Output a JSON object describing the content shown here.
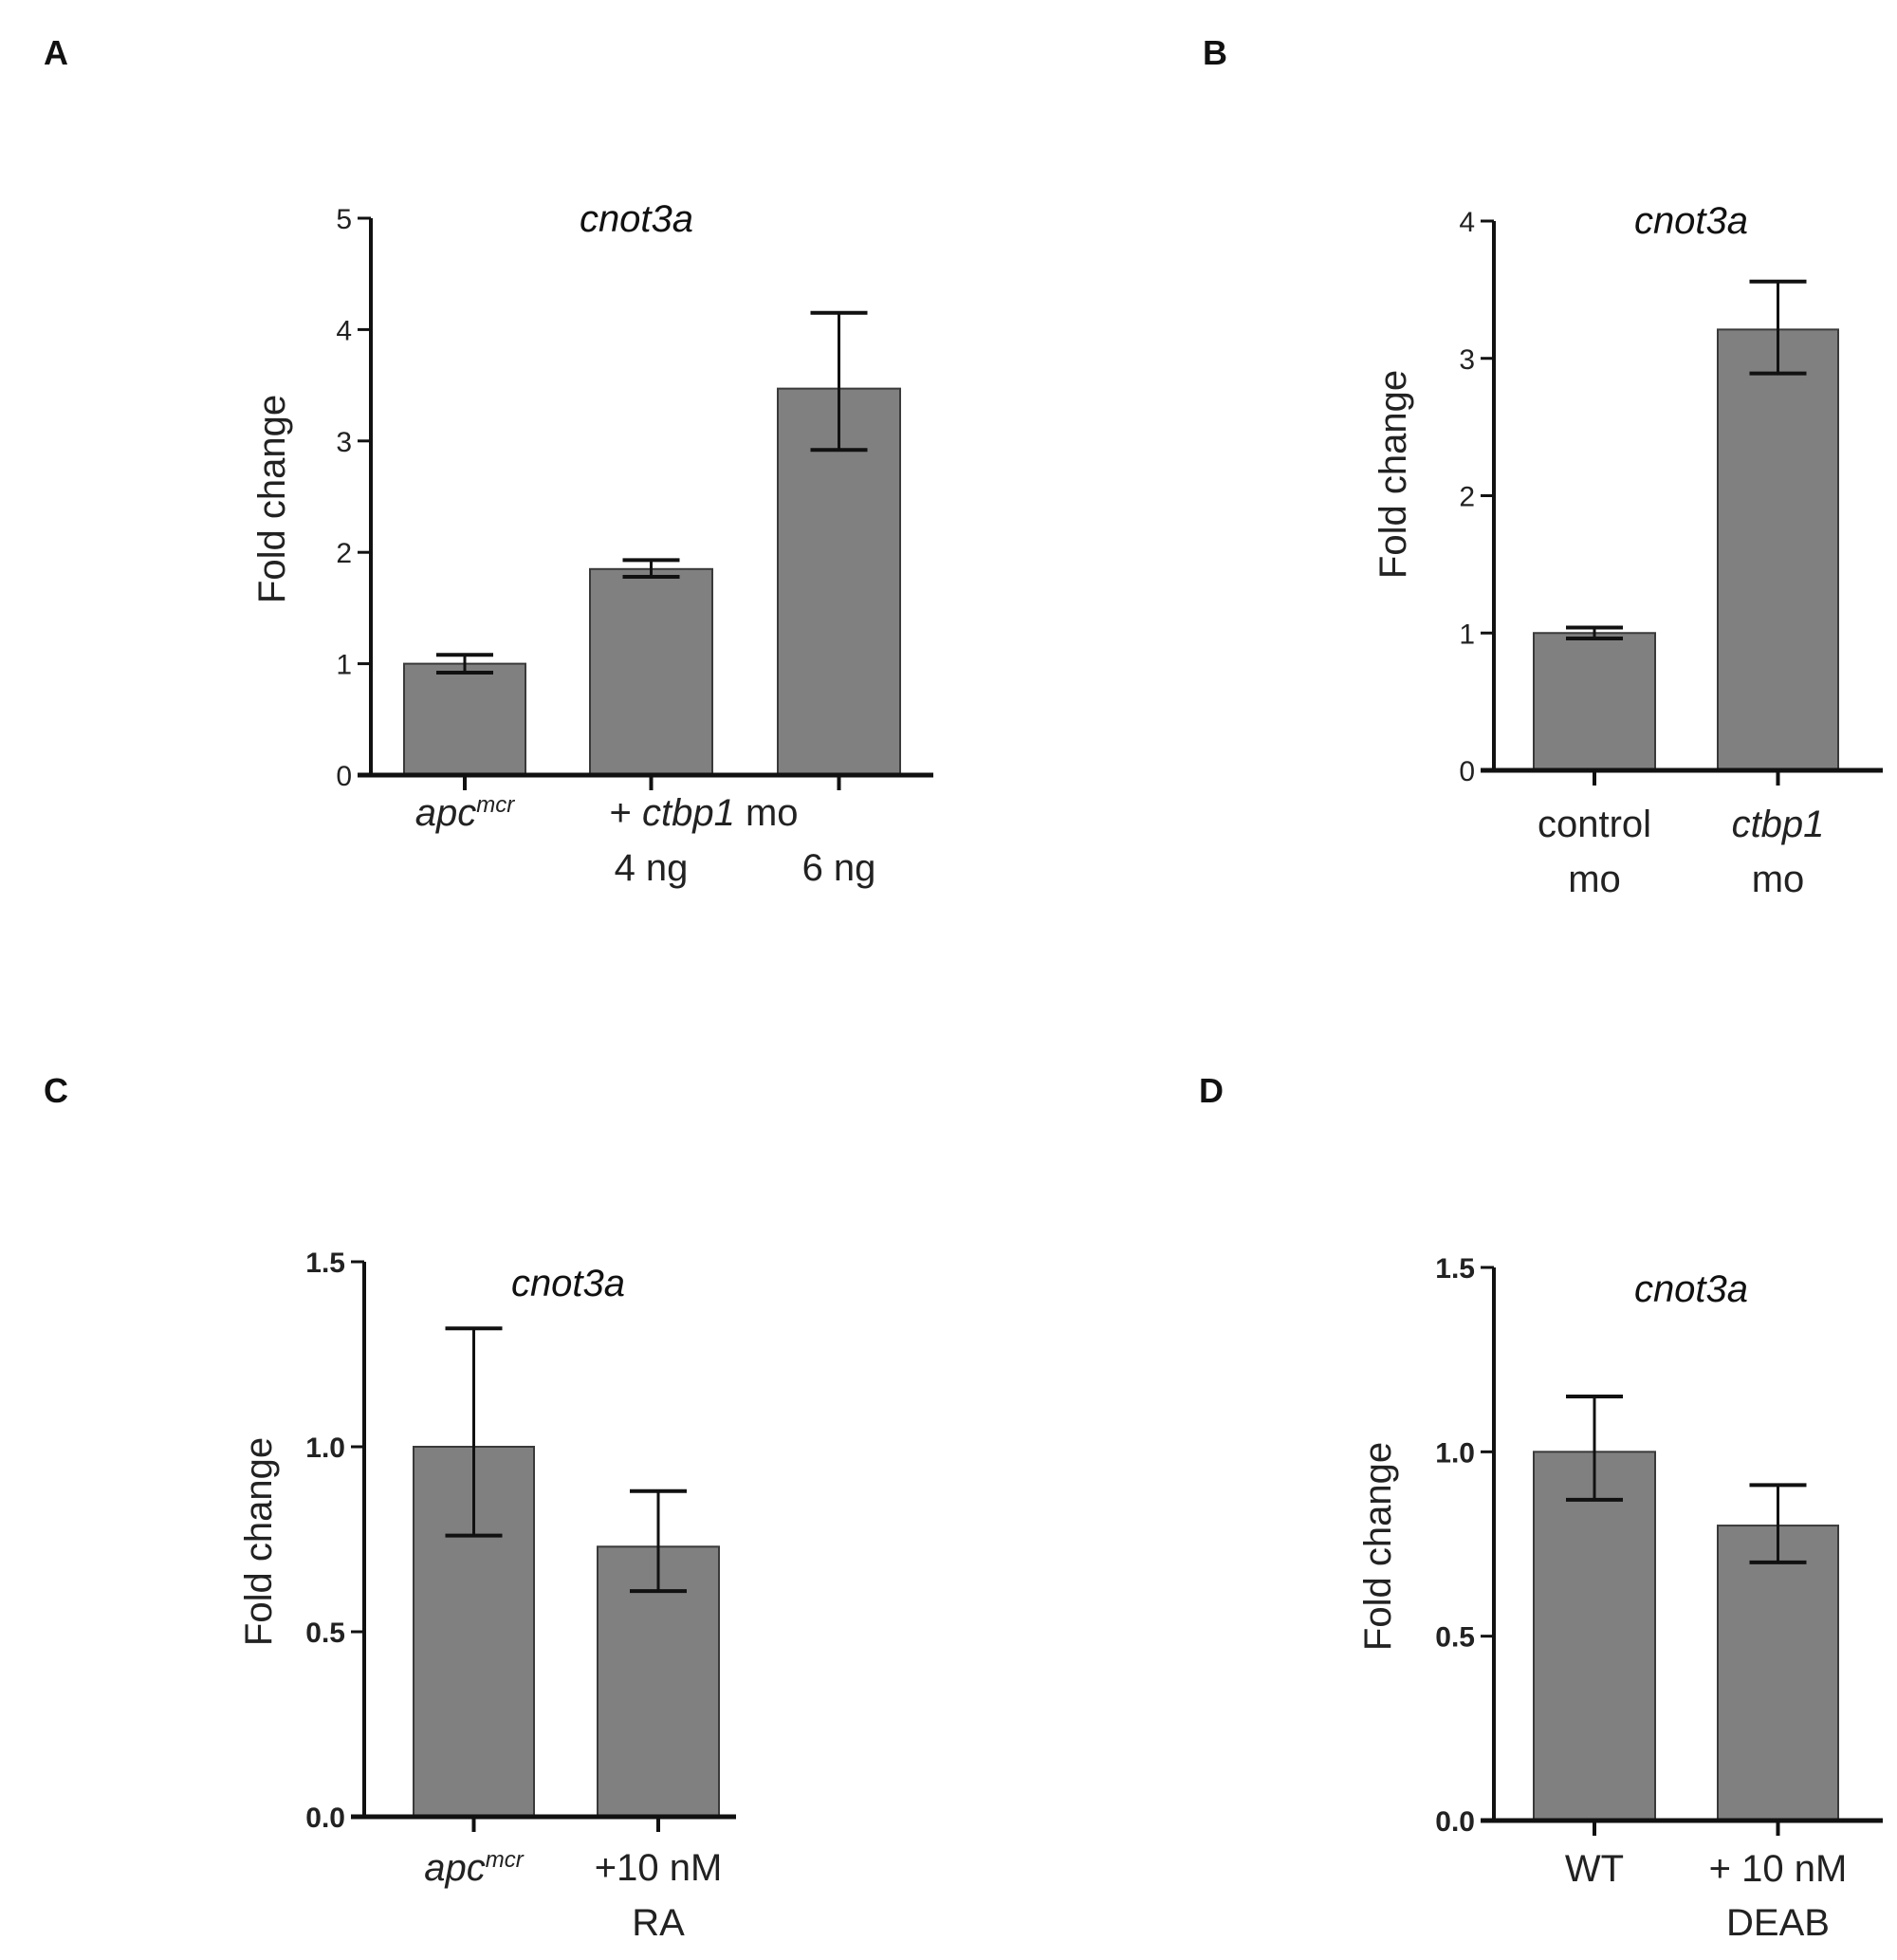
{
  "colors": {
    "bar": "#808080",
    "bar_edge": "#3a3a3a",
    "axis": "#111111",
    "error_bar": "#111111"
  },
  "chart_data": [
    {
      "panel": "A",
      "type": "bar",
      "title": "cnot3a",
      "ylabel": "Fold change",
      "xlabel": "",
      "ylim": [
        0,
        5
      ],
      "yticks": [
        "0",
        "1",
        "2",
        "3",
        "4",
        "5"
      ],
      "tick_step": 1,
      "categories": [
        [
          [
            {
              "t": "apc",
              "i": true
            },
            {
              "t": "mcr",
              "i": true,
              "sup": true
            }
          ]
        ],
        [
          [
            {
              "t": "4 ng"
            }
          ]
        ],
        [
          [
            {
              "t": "6 ng"
            }
          ]
        ]
      ],
      "group_label": [
        [
          {
            "t": "+ "
          },
          {
            "t": "ctbp1",
            "i": true
          },
          {
            "t": " mo"
          }
        ]
      ],
      "values": [
        1.0,
        1.85,
        3.47
      ],
      "error_low": [
        0.92,
        1.78,
        2.92
      ],
      "error_high": [
        1.08,
        1.93,
        4.15
      ]
    },
    {
      "panel": "B",
      "type": "bar",
      "title": "cnot3a",
      "ylabel": "Fold change",
      "xlabel": "",
      "ylim": [
        0,
        4
      ],
      "yticks": [
        "0",
        "1",
        "2",
        "3",
        "4"
      ],
      "tick_step": 1,
      "categories": [
        [
          [
            {
              "t": "control"
            }
          ],
          [
            {
              "t": "mo"
            }
          ]
        ],
        [
          [
            {
              "t": "ctbp1",
              "i": true
            }
          ],
          [
            {
              "t": "mo"
            }
          ]
        ]
      ],
      "values": [
        1.0,
        3.21
      ],
      "error_low": [
        0.96,
        2.89
      ],
      "error_high": [
        1.04,
        3.56
      ]
    },
    {
      "panel": "C",
      "type": "bar",
      "title": "cnot3a",
      "ylabel": "Fold change",
      "xlabel": "",
      "ylim": [
        0,
        1.5
      ],
      "yticks": [
        "0.0",
        "0.5",
        "1.0",
        "1.5"
      ],
      "tick_step": 0.5,
      "categories": [
        [
          [
            {
              "t": "apc",
              "i": true
            },
            {
              "t": "mcr",
              "i": true,
              "sup": true
            }
          ]
        ],
        [
          [
            {
              "t": "+10 nM"
            }
          ],
          [
            {
              "t": "RA"
            }
          ]
        ]
      ],
      "values": [
        1.0,
        0.73
      ],
      "error_low": [
        0.76,
        0.61
      ],
      "error_high": [
        1.32,
        0.88
      ]
    },
    {
      "panel": "D",
      "type": "bar",
      "title": "cnot3a",
      "ylabel": "Fold change",
      "xlabel": "",
      "ylim": [
        0,
        1.5
      ],
      "yticks": [
        "0.0",
        "0.5",
        "1.0",
        "1.5"
      ],
      "tick_step": 0.5,
      "categories": [
        [
          [
            {
              "t": "WT"
            }
          ]
        ],
        [
          [
            {
              "t": "+ 10 nM"
            }
          ],
          [
            {
              "t": "DEAB"
            }
          ]
        ]
      ],
      "values": [
        1.0,
        0.8
      ],
      "error_low": [
        0.87,
        0.7
      ],
      "error_high": [
        1.15,
        0.91
      ]
    }
  ]
}
